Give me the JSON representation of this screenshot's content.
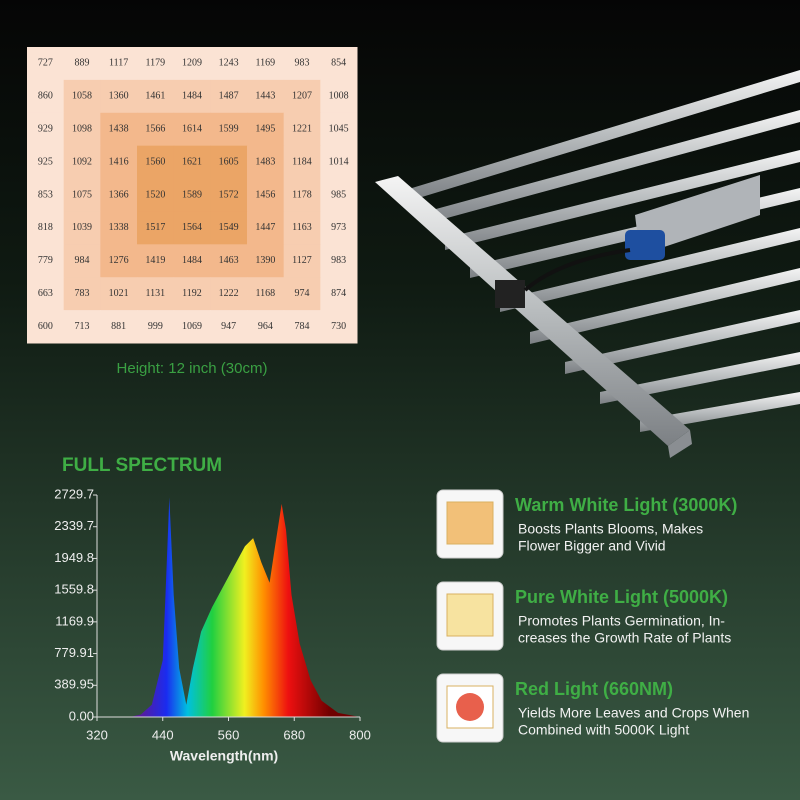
{
  "grid_table": {
    "rows": [
      [
        727,
        889,
        1117,
        1179,
        1209,
        1243,
        1169,
        983,
        854
      ],
      [
        860,
        1058,
        1360,
        1461,
        1484,
        1487,
        1443,
        1207,
        1008
      ],
      [
        929,
        1098,
        1438,
        1566,
        1614,
        1599,
        1495,
        1221,
        1045
      ],
      [
        925,
        1092,
        1416,
        1560,
        1621,
        1605,
        1483,
        1184,
        1014
      ],
      [
        853,
        1075,
        1366,
        1520,
        1589,
        1572,
        1456,
        1178,
        985
      ],
      [
        818,
        1039,
        1338,
        1517,
        1564,
        1549,
        1447,
        1163,
        973
      ],
      [
        779,
        984,
        1276,
        1419,
        1484,
        1463,
        1390,
        1127,
        983
      ],
      [
        663,
        783,
        1021,
        1131,
        1192,
        1222,
        1168,
        974,
        874
      ],
      [
        600,
        713,
        881,
        999,
        1069,
        947,
        964,
        784,
        730
      ]
    ],
    "caption": "Height: 12 inch (30cm)"
  },
  "chart_data": {
    "type": "area",
    "title": "FULL SPECTRUM",
    "xlabel": "Wavelength(nm)",
    "x": [
      380,
      400,
      420,
      440,
      445,
      452,
      460,
      470,
      483,
      495,
      510,
      530,
      550,
      570,
      590,
      605,
      620,
      635,
      645,
      657,
      665,
      675,
      690,
      710,
      730,
      760,
      800
    ],
    "values": [
      0,
      30,
      150,
      700,
      1500,
      2700,
      1500,
      600,
      150,
      600,
      1050,
      1350,
      1600,
      1850,
      2100,
      2200,
      1900,
      1650,
      2100,
      2620,
      2300,
      1500,
      900,
      450,
      200,
      50,
      0
    ],
    "xlim": [
      320,
      800
    ],
    "ylim": [
      0,
      2729.7
    ],
    "xticks": [
      320,
      440,
      560,
      680,
      800
    ],
    "yticks": [
      {
        "value": 0,
        "label": "0.00"
      },
      389.95,
      779.91,
      1169.9,
      1559.8,
      1949.8,
      2339.7,
      2729.7
    ]
  },
  "features": [
    {
      "title": "Warm White Light (3000K)",
      "lines": [
        "Boosts Plants Blooms, Makes",
        "Flower Bigger and Vivid"
      ]
    },
    {
      "title": "Pure White Light (5000K)",
      "lines": [
        "Promotes Plants Germination, In-",
        "creases the Growth Rate of Plants"
      ]
    },
    {
      "title": "Red Light (660NM)",
      "lines": [
        "Yields More Leaves and Crops When",
        "Combined with 5000K Light"
      ]
    }
  ]
}
